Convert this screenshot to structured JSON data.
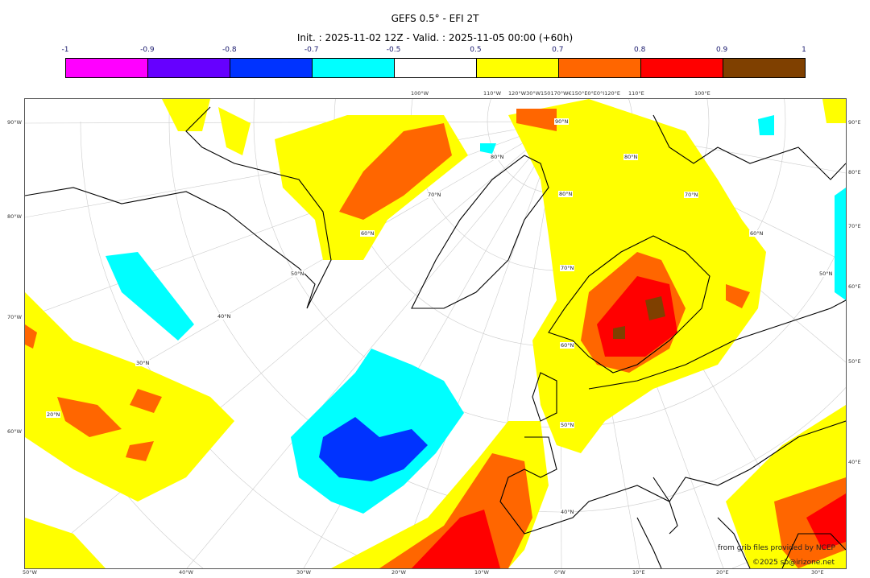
{
  "title": "GEFS 0.5° - EFI 2T",
  "subtitle": "Init. : 2025-11-02 12Z - Valid. : 2025-11-05 00:00 (+60h)",
  "colorbar": {
    "labels": [
      "-1",
      "-0.9",
      "-0.8",
      "-0.7",
      "-0.5",
      "0.5",
      "0.7",
      "0.8",
      "0.9",
      "1"
    ],
    "colors": [
      "#ff00ff",
      "#6600ff",
      "#0033ff",
      "#00ffff",
      "#ffffff",
      "#ffff00",
      "#ff6600",
      "#ff0000",
      "#7f4000"
    ]
  },
  "axes": {
    "left": [
      "90°W",
      "80°W",
      "70°W",
      "60°W"
    ],
    "right": [
      "90°E",
      "80°E",
      "70°E",
      "60°E",
      "50°E",
      "40°E"
    ],
    "bottom": [
      "50°W",
      "40°W",
      "30°W",
      "20°W",
      "10°W",
      "0°W",
      "10°E",
      "20°E",
      "30°E"
    ],
    "top": [
      "100°W",
      "110°W",
      "120°W30°W150170°W€150°E0°E0°I120°E",
      "110°E",
      "100°E"
    ]
  },
  "lat_labels": [
    "90°N",
    "80°N",
    "80°N",
    "80°N",
    "70°N",
    "70°N",
    "70°N",
    "60°N",
    "60°N",
    "60°N",
    "50°N",
    "50°N",
    "50°N",
    "40°N",
    "40°N",
    "30°N",
    "20°N"
  ],
  "credits": {
    "source": "from grib files provided by NCEP",
    "copyright": "©2025 sb@irizone.net"
  }
}
